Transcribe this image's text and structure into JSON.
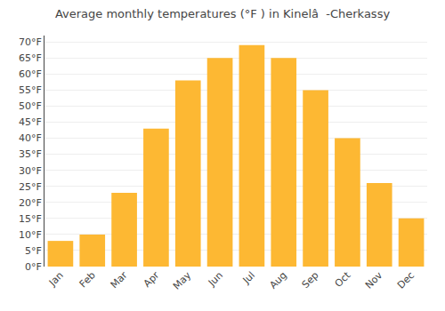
{
  "chart_data": {
    "type": "bar",
    "title": "Average monthly temperatures (°F ) in Kinelâ  -Cherkassy",
    "categories": [
      "Jan",
      "Feb",
      "Mar",
      "Apr",
      "May",
      "Jun",
      "Jul",
      "Aug",
      "Sep",
      "Oct",
      "Nov",
      "Dec"
    ],
    "values": [
      8,
      10,
      23,
      43,
      58,
      65,
      69,
      65,
      55,
      40,
      26,
      15
    ],
    "color": "#FDB833",
    "ylim": [
      0,
      72
    ],
    "yticks": [
      {
        "value": 0,
        "label": "0°F"
      },
      {
        "value": 5,
        "label": "5°F"
      },
      {
        "value": 10,
        "label": "10°F"
      },
      {
        "value": 15,
        "label": "15°F"
      },
      {
        "value": 20,
        "label": "20°F"
      },
      {
        "value": 25,
        "label": "25°F"
      },
      {
        "value": 30,
        "label": "30°F"
      },
      {
        "value": 35,
        "label": "35°F"
      },
      {
        "value": 40,
        "label": "40°F"
      },
      {
        "value": 45,
        "label": "45°F"
      },
      {
        "value": 50,
        "label": "50°F"
      },
      {
        "value": 55,
        "label": "55°F"
      },
      {
        "value": 60,
        "label": "60°F"
      },
      {
        "value": 65,
        "label": "65°F"
      },
      {
        "value": 70,
        "label": "70°F"
      }
    ],
    "grid": true
  }
}
